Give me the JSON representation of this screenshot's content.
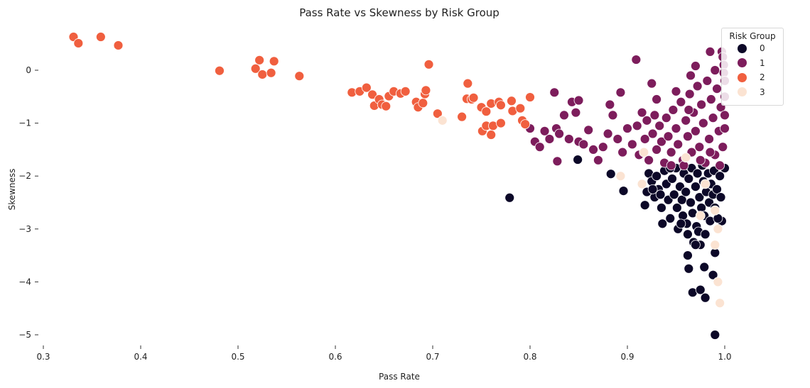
{
  "chart_data": {
    "type": "scatter",
    "title": "Pass Rate vs Skewness by Risk Group",
    "xlabel": "Pass Rate",
    "ylabel": "Skewness",
    "xlim": [
      0.3,
      1.0
    ],
    "ylim": [
      -5.3,
      0.8
    ],
    "xticks": [
      "0.3",
      "0.4",
      "0.5",
      "0.6",
      "0.7",
      "0.8",
      "0.9",
      "1.0"
    ],
    "yticks": [
      "0",
      "−1",
      "−2",
      "−3",
      "−4",
      "−5"
    ],
    "grid": false,
    "legend": {
      "title": "Risk Group",
      "placement": "top-right",
      "entries": [
        "0",
        "1",
        "2",
        "3"
      ]
    },
    "colors": {
      "0": "#0c0828",
      "1": "#7d1d5c",
      "2": "#f05f3f",
      "3": "#fbe3d2"
    },
    "series": [
      {
        "name": "0",
        "points": [
          [
            0.779,
            -2.41
          ],
          [
            0.849,
            -1.69
          ],
          [
            0.883,
            -1.96
          ],
          [
            0.896,
            -2.28
          ],
          [
            0.99,
            -5.0
          ],
          [
            0.962,
            -3.5
          ],
          [
            0.963,
            -3.75
          ],
          [
            0.967,
            -4.2
          ],
          [
            0.975,
            -4.15
          ],
          [
            0.98,
            -4.3
          ],
          [
            0.979,
            -3.72
          ],
          [
            0.988,
            -3.87
          ],
          [
            0.99,
            -3.45
          ],
          [
            0.997,
            -2.85
          ],
          [
            1.0,
            -1.85
          ],
          [
            0.918,
            -2.55
          ],
          [
            0.92,
            -2.3
          ],
          [
            0.922,
            -1.95
          ],
          [
            0.925,
            -2.1
          ],
          [
            0.928,
            -2.4
          ],
          [
            0.93,
            -2.0
          ],
          [
            0.932,
            -2.25
          ],
          [
            0.935,
            -2.6
          ],
          [
            0.936,
            -2.9
          ],
          [
            0.938,
            -1.9
          ],
          [
            0.94,
            -2.15
          ],
          [
            0.942,
            -2.45
          ],
          [
            0.944,
            -2.8
          ],
          [
            0.946,
            -2.05
          ],
          [
            0.948,
            -2.35
          ],
          [
            0.95,
            -1.85
          ],
          [
            0.951,
            -2.6
          ],
          [
            0.952,
            -3.0
          ],
          [
            0.954,
            -2.2
          ],
          [
            0.956,
            -2.45
          ],
          [
            0.957,
            -2.75
          ],
          [
            0.958,
            -1.95
          ],
          [
            0.96,
            -2.3
          ],
          [
            0.961,
            -2.9
          ],
          [
            0.962,
            -3.1
          ],
          [
            0.963,
            -2.05
          ],
          [
            0.965,
            -2.5
          ],
          [
            0.966,
            -1.85
          ],
          [
            0.967,
            -2.7
          ],
          [
            0.968,
            -3.25
          ],
          [
            0.97,
            -2.2
          ],
          [
            0.971,
            -2.95
          ],
          [
            0.972,
            -1.95
          ],
          [
            0.973,
            -3.05
          ],
          [
            0.974,
            -2.4
          ],
          [
            0.975,
            -3.3
          ],
          [
            0.976,
            -2.6
          ],
          [
            0.977,
            -1.8
          ],
          [
            0.978,
            -2.1
          ],
          [
            0.979,
            -2.75
          ],
          [
            0.98,
            -3.1
          ],
          [
            0.981,
            -2.3
          ],
          [
            0.983,
            -1.95
          ],
          [
            0.984,
            -2.5
          ],
          [
            0.985,
            -2.85
          ],
          [
            0.986,
            -2.15
          ],
          [
            0.988,
            -2.35
          ],
          [
            0.989,
            -1.9
          ],
          [
            0.99,
            -2.6
          ],
          [
            0.992,
            -2.25
          ],
          [
            0.993,
            -2.8
          ],
          [
            0.995,
            -2.0
          ],
          [
            0.996,
            -2.4
          ],
          [
            0.944,
            -1.85
          ],
          [
            0.955,
            -2.9
          ],
          [
            0.934,
            -2.35
          ],
          [
            0.926,
            -2.25
          ],
          [
            0.97,
            -3.3
          ]
        ]
      },
      {
        "name": "1",
        "points": [
          [
            0.8,
            -1.1
          ],
          [
            0.805,
            -1.35
          ],
          [
            0.81,
            -1.45
          ],
          [
            0.815,
            -1.15
          ],
          [
            0.82,
            -1.3
          ],
          [
            0.825,
            -0.42
          ],
          [
            0.827,
            -1.1
          ],
          [
            0.828,
            -1.72
          ],
          [
            0.83,
            -1.2
          ],
          [
            0.835,
            -0.85
          ],
          [
            0.84,
            -1.3
          ],
          [
            0.843,
            -0.6
          ],
          [
            0.847,
            -0.8
          ],
          [
            0.85,
            -0.57
          ],
          [
            0.85,
            -1.35
          ],
          [
            0.855,
            -1.4
          ],
          [
            0.86,
            -1.13
          ],
          [
            0.865,
            -1.5
          ],
          [
            0.87,
            -1.7
          ],
          [
            0.875,
            -1.45
          ],
          [
            0.88,
            -1.2
          ],
          [
            0.882,
            -0.65
          ],
          [
            0.885,
            -0.85
          ],
          [
            0.89,
            -1.3
          ],
          [
            0.893,
            -0.42
          ],
          [
            0.895,
            -1.55
          ],
          [
            0.909,
            0.2
          ],
          [
            0.915,
            -0.8
          ],
          [
            0.925,
            -0.25
          ],
          [
            0.93,
            -0.55
          ],
          [
            0.95,
            -0.4
          ],
          [
            0.965,
            -0.1
          ],
          [
            0.97,
            0.08
          ],
          [
            0.985,
            0.35
          ],
          [
            0.99,
            0.0
          ],
          [
            0.997,
            0.35
          ],
          [
            0.998,
            0.25
          ],
          [
            0.999,
            0.1
          ],
          [
            0.9,
            -1.1
          ],
          [
            0.905,
            -1.4
          ],
          [
            0.91,
            -1.05
          ],
          [
            0.912,
            -1.6
          ],
          [
            0.918,
            -1.3
          ],
          [
            0.92,
            -0.95
          ],
          [
            0.922,
            -1.7
          ],
          [
            0.926,
            -1.2
          ],
          [
            0.928,
            -0.85
          ],
          [
            0.93,
            -1.5
          ],
          [
            0.933,
            -1.05
          ],
          [
            0.935,
            -1.35
          ],
          [
            0.938,
            -1.75
          ],
          [
            0.94,
            -0.9
          ],
          [
            0.942,
            -1.25
          ],
          [
            0.945,
            -1.55
          ],
          [
            0.947,
            -0.75
          ],
          [
            0.95,
            -1.1
          ],
          [
            0.952,
            -1.4
          ],
          [
            0.955,
            -0.6
          ],
          [
            0.957,
            -1.7
          ],
          [
            0.96,
            -0.95
          ],
          [
            0.962,
            -1.25
          ],
          [
            0.964,
            -0.45
          ],
          [
            0.966,
            -1.55
          ],
          [
            0.968,
            -0.8
          ],
          [
            0.97,
            -1.15
          ],
          [
            0.972,
            -0.3
          ],
          [
            0.974,
            -1.45
          ],
          [
            0.976,
            -0.65
          ],
          [
            0.978,
            -1.0
          ],
          [
            0.98,
            -1.75
          ],
          [
            0.982,
            -0.2
          ],
          [
            0.984,
            -1.3
          ],
          [
            0.986,
            -0.55
          ],
          [
            0.988,
            -0.9
          ],
          [
            0.99,
            -1.6
          ],
          [
            0.992,
            -0.35
          ],
          [
            0.994,
            -1.15
          ],
          [
            0.996,
            -0.7
          ],
          [
            0.998,
            -1.45
          ],
          [
            0.999,
            -0.05
          ],
          [
            1.0,
            -0.5
          ],
          [
            1.0,
            -0.85
          ],
          [
            1.0,
            -1.1
          ],
          [
            1.0,
            -0.2
          ],
          [
            0.995,
            -1.8
          ],
          [
            0.985,
            -1.55
          ],
          [
            0.975,
            -1.7
          ],
          [
            0.958,
            -1.8
          ],
          [
            0.945,
            -1.8
          ],
          [
            0.963,
            -0.75
          ]
        ]
      },
      {
        "name": "2",
        "points": [
          [
            0.331,
            0.63
          ],
          [
            0.336,
            0.51
          ],
          [
            0.359,
            0.63
          ],
          [
            0.377,
            0.47
          ],
          [
            0.481,
            -0.01
          ],
          [
            0.518,
            0.03
          ],
          [
            0.522,
            0.19
          ],
          [
            0.525,
            -0.08
          ],
          [
            0.534,
            -0.05
          ],
          [
            0.537,
            0.17
          ],
          [
            0.563,
            -0.11
          ],
          [
            0.617,
            -0.42
          ],
          [
            0.625,
            -0.4
          ],
          [
            0.632,
            -0.33
          ],
          [
            0.638,
            -0.46
          ],
          [
            0.64,
            -0.67
          ],
          [
            0.645,
            -0.55
          ],
          [
            0.648,
            -0.65
          ],
          [
            0.652,
            -0.68
          ],
          [
            0.655,
            -0.49
          ],
          [
            0.66,
            -0.4
          ],
          [
            0.667,
            -0.44
          ],
          [
            0.672,
            -0.4
          ],
          [
            0.683,
            -0.6
          ],
          [
            0.685,
            -0.7
          ],
          [
            0.69,
            -0.62
          ],
          [
            0.692,
            -0.45
          ],
          [
            0.693,
            -0.38
          ],
          [
            0.696,
            0.11
          ],
          [
            0.705,
            -0.82
          ],
          [
            0.73,
            -0.88
          ],
          [
            0.735,
            -0.54
          ],
          [
            0.736,
            -0.25
          ],
          [
            0.74,
            -0.55
          ],
          [
            0.742,
            -0.52
          ],
          [
            0.75,
            -0.7
          ],
          [
            0.751,
            -1.15
          ],
          [
            0.755,
            -0.78
          ],
          [
            0.755,
            -1.05
          ],
          [
            0.76,
            -0.63
          ],
          [
            0.76,
            -1.22
          ],
          [
            0.762,
            -1.05
          ],
          [
            0.768,
            -0.6
          ],
          [
            0.77,
            -0.66
          ],
          [
            0.77,
            -1.0
          ],
          [
            0.781,
            -0.58
          ],
          [
            0.782,
            -0.77
          ],
          [
            0.79,
            -0.72
          ],
          [
            0.792,
            -0.95
          ],
          [
            0.795,
            -1.02
          ],
          [
            0.8,
            -0.51
          ]
        ]
      },
      {
        "name": "3",
        "points": [
          [
            0.71,
            -0.95
          ],
          [
            0.893,
            -2.0
          ],
          [
            0.915,
            -2.15
          ],
          [
            0.917,
            -1.55
          ],
          [
            0.99,
            -2.65
          ],
          [
            0.993,
            -3.0
          ],
          [
            0.99,
            -3.3
          ],
          [
            0.993,
            -4.0
          ],
          [
            0.995,
            -4.4
          ],
          [
            0.98,
            -2.15
          ],
          [
            0.96,
            -1.65
          ],
          [
            0.975,
            -2.75
          ]
        ]
      }
    ]
  }
}
